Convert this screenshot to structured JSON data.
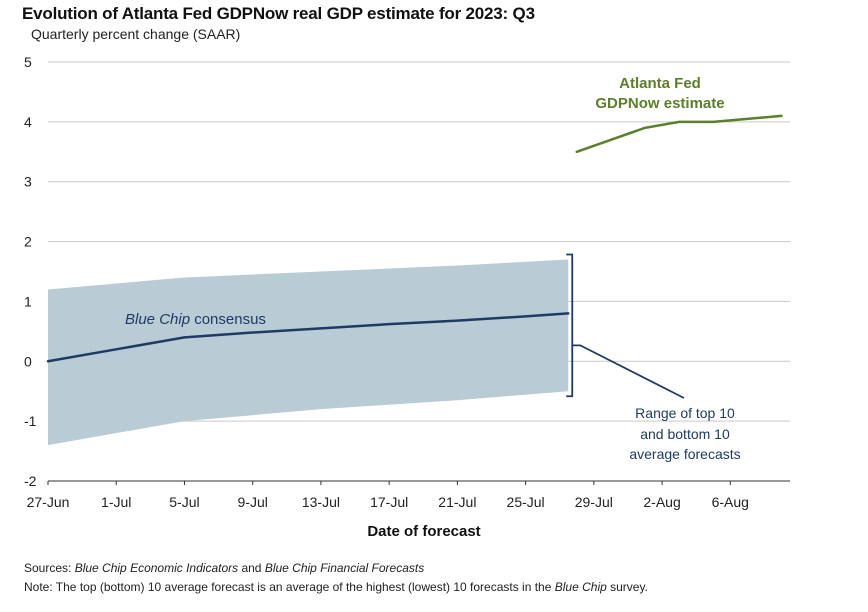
{
  "colors": {
    "navy": "#1f3a64",
    "green": "#5b7f2a",
    "band": "#b9ccd6",
    "grid": "#c9c9c9",
    "axis": "#333333"
  },
  "chart_data": {
    "type": "line",
    "title": "Evolution of Atlanta Fed GDPNow real GDP estimate for 2023: Q3",
    "subtitle": "Quarterly percent change (SAAR)",
    "xlabel": "Date of forecast",
    "ylabel": "",
    "ylim": [
      -2,
      5
    ],
    "yticks": [
      -2,
      -1,
      0,
      1,
      2,
      3,
      4,
      5
    ],
    "xlim": [
      0,
      43.5
    ],
    "xtick_labels": [
      "27-Jun",
      "1-Jul",
      "5-Jul",
      "9-Jul",
      "13-Jul",
      "17-Jul",
      "21-Jul",
      "25-Jul",
      "29-Jul",
      "2-Aug",
      "6-Aug"
    ],
    "xtick_positions": [
      0,
      4,
      8,
      12,
      16,
      20,
      24,
      28,
      32,
      36,
      40
    ],
    "series": [
      {
        "name": "Blue Chip consensus",
        "x": [
          0,
          4,
          8,
          12,
          16,
          20,
          24,
          28,
          30.5
        ],
        "values": [
          0.0,
          0.2,
          0.4,
          0.48,
          0.55,
          0.62,
          0.68,
          0.75,
          0.8
        ]
      },
      {
        "name": "Atlanta Fed GDPNow estimate",
        "x": [
          31,
          33,
          35,
          37,
          39,
          41,
          43
        ],
        "values": [
          3.5,
          3.7,
          3.9,
          4.0,
          4.0,
          4.05,
          4.1
        ]
      }
    ],
    "range_band": {
      "name": "Range of top 10 and bottom 10 average forecasts",
      "x": [
        0,
        8,
        16,
        24,
        30.5
      ],
      "upper": [
        1.2,
        1.4,
        1.5,
        1.6,
        1.7
      ],
      "lower": [
        -1.4,
        -1.0,
        -0.8,
        -0.65,
        -0.5
      ]
    },
    "annotations": {
      "blue_chip_prefix": "Blue Chip",
      "blue_chip_suffix": " consensus",
      "gdpnow_line1": "Atlanta Fed",
      "gdpnow_line2": "GDPNow estimate",
      "range_line1": "Range of top 10",
      "range_line2": "and bottom 10",
      "range_line3": "average forecasts"
    }
  },
  "footer": {
    "sources_label": "Sources:",
    "sources_italic1": "Blue Chip Economic Indicators",
    "sources_and": " and ",
    "sources_italic2": "Blue Chip Financial Forecasts",
    "note_label": "Note:",
    "note_text": " The top (bottom) 10 average forecast is an average of the highest (lowest) 10 forecasts in the ",
    "note_italic": "Blue Chip",
    "note_end": " survey."
  }
}
